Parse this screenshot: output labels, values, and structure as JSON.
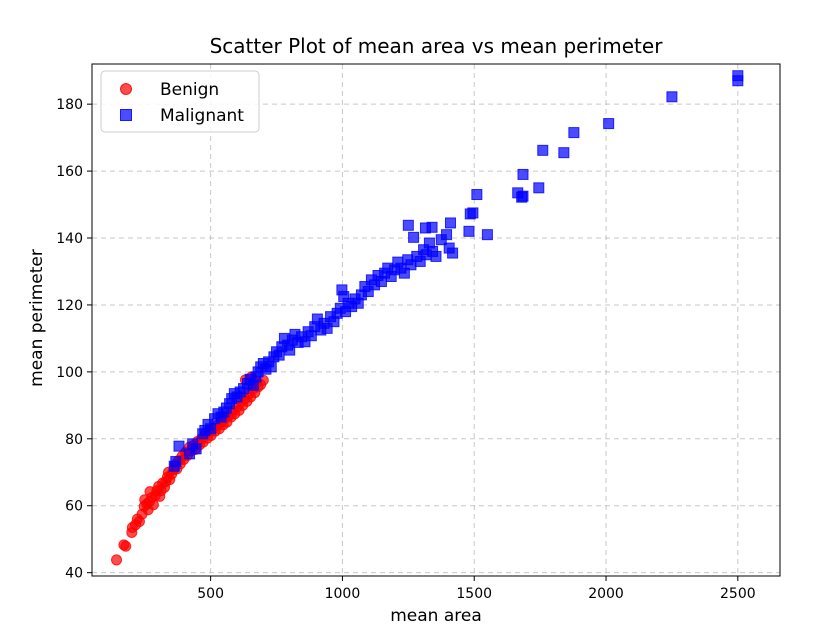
{
  "chart_data": {
    "type": "scatter",
    "title": "Scatter Plot of mean area vs mean perimeter",
    "xlabel": "mean area",
    "ylabel": "mean perimeter",
    "xlim": [
      50,
      2660
    ],
    "ylim": [
      39,
      192
    ],
    "xticks": [
      500,
      1000,
      1500,
      2000,
      2500
    ],
    "yticks": [
      40,
      60,
      80,
      100,
      120,
      140,
      160,
      180
    ],
    "grid": true,
    "legend_position": "top-left",
    "series": [
      {
        "name": "Benign",
        "color": "#ff0000",
        "marker": "circle",
        "points": [
          [
            143,
            43.8
          ],
          [
            171,
            48.3
          ],
          [
            178,
            47.9
          ],
          [
            201,
            52.0
          ],
          [
            203,
            53.5
          ],
          [
            215,
            54.3
          ],
          [
            222,
            56.0
          ],
          [
            230,
            55.3
          ],
          [
            240,
            57.5
          ],
          [
            248,
            59.8
          ],
          [
            250,
            61.8
          ],
          [
            258,
            60.5
          ],
          [
            263,
            58.8
          ],
          [
            268,
            61.2
          ],
          [
            270,
            64.2
          ],
          [
            276,
            62.4
          ],
          [
            283,
            60.3
          ],
          [
            290,
            63.0
          ],
          [
            296,
            64.5
          ],
          [
            303,
            65.8
          ],
          [
            307,
            62.8
          ],
          [
            312,
            64.5
          ],
          [
            318,
            66.8
          ],
          [
            325,
            65.5
          ],
          [
            330,
            67.2
          ],
          [
            336,
            68.5
          ],
          [
            340,
            70.0
          ],
          [
            345,
            67.8
          ],
          [
            352,
            69.4
          ],
          [
            360,
            70.8
          ],
          [
            365,
            72.2
          ],
          [
            372,
            71.0
          ],
          [
            378,
            73.5
          ],
          [
            385,
            72.5
          ],
          [
            392,
            74.8
          ],
          [
            398,
            73.8
          ],
          [
            405,
            76.0
          ],
          [
            412,
            75.0
          ],
          [
            420,
            77.5
          ],
          [
            428,
            76.5
          ],
          [
            435,
            78.0
          ],
          [
            442,
            76.8
          ],
          [
            450,
            79.2
          ],
          [
            458,
            78.2
          ],
          [
            465,
            80.0
          ],
          [
            472,
            79.0
          ],
          [
            480,
            81.5
          ],
          [
            488,
            80.2
          ],
          [
            495,
            82.0
          ],
          [
            502,
            81.0
          ],
          [
            510,
            83.2
          ],
          [
            518,
            82.3
          ],
          [
            525,
            84.0
          ],
          [
            533,
            83.0
          ],
          [
            540,
            85.0
          ],
          [
            548,
            84.2
          ],
          [
            555,
            86.2
          ],
          [
            562,
            85.0
          ],
          [
            570,
            87.0
          ],
          [
            578,
            86.5
          ],
          [
            585,
            88.5
          ],
          [
            592,
            87.5
          ],
          [
            600,
            89.5
          ],
          [
            608,
            88.5
          ],
          [
            615,
            91.0
          ],
          [
            622,
            90.0
          ],
          [
            630,
            92.0
          ],
          [
            638,
            91.2
          ],
          [
            645,
            93.5
          ],
          [
            652,
            92.5
          ],
          [
            660,
            94.8
          ],
          [
            668,
            93.8
          ],
          [
            680,
            95.5
          ],
          [
            690,
            96.2
          ],
          [
            632,
            97.6
          ],
          [
            655,
            98.5
          ],
          [
            675,
            96.8
          ],
          [
            700,
            97.5
          ]
        ]
      },
      {
        "name": "Malignant",
        "color": "#0000ff",
        "marker": "square",
        "points": [
          [
            362,
            71.8
          ],
          [
            368,
            73.2
          ],
          [
            380,
            77.8
          ],
          [
            420,
            75.5
          ],
          [
            432,
            78.5
          ],
          [
            445,
            77.0
          ],
          [
            470,
            81.5
          ],
          [
            478,
            82.5
          ],
          [
            490,
            84.3
          ],
          [
            500,
            83.0
          ],
          [
            515,
            86.0
          ],
          [
            528,
            87.5
          ],
          [
            540,
            86.5
          ],
          [
            550,
            88.0
          ],
          [
            560,
            89.2
          ],
          [
            572,
            90.5
          ],
          [
            580,
            92.0
          ],
          [
            590,
            93.5
          ],
          [
            600,
            92.5
          ],
          [
            612,
            94.0
          ],
          [
            625,
            95.0
          ],
          [
            640,
            96.5
          ],
          [
            650,
            97.8
          ],
          [
            662,
            96.0
          ],
          [
            672,
            98.5
          ],
          [
            680,
            100.0
          ],
          [
            690,
            101.5
          ],
          [
            700,
            102.5
          ],
          [
            710,
            100.8
          ],
          [
            720,
            103.0
          ],
          [
            730,
            101.5
          ],
          [
            740,
            104.5
          ],
          [
            750,
            106.0
          ],
          [
            760,
            105.0
          ],
          [
            770,
            107.5
          ],
          [
            780,
            110.0
          ],
          [
            792,
            108.0
          ],
          [
            800,
            106.5
          ],
          [
            810,
            109.5
          ],
          [
            820,
            111.2
          ],
          [
            832,
            108.8
          ],
          [
            845,
            110.5
          ],
          [
            858,
            109.0
          ],
          [
            870,
            112.0
          ],
          [
            882,
            110.8
          ],
          [
            895,
            113.5
          ],
          [
            905,
            115.8
          ],
          [
            918,
            112.5
          ],
          [
            930,
            114.5
          ],
          [
            942,
            113.0
          ],
          [
            955,
            116.5
          ],
          [
            968,
            115.0
          ],
          [
            980,
            117.5
          ],
          [
            992,
            119.0
          ],
          [
            998,
            124.5
          ],
          [
            1005,
            122.5
          ],
          [
            1012,
            118.0
          ],
          [
            1022,
            120.5
          ],
          [
            1035,
            119.5
          ],
          [
            1048,
            121.8
          ],
          [
            1060,
            120.5
          ],
          [
            1072,
            123.0
          ],
          [
            1085,
            125.5
          ],
          [
            1098,
            124.0
          ],
          [
            1110,
            127.5
          ],
          [
            1122,
            126.0
          ],
          [
            1135,
            128.8
          ],
          [
            1148,
            127.0
          ],
          [
            1160,
            129.5
          ],
          [
            1172,
            131.0
          ],
          [
            1185,
            128.5
          ],
          [
            1198,
            130.5
          ],
          [
            1210,
            132.8
          ],
          [
            1222,
            131.0
          ],
          [
            1235,
            129.5
          ],
          [
            1248,
            133.5
          ],
          [
            1260,
            132.0
          ],
          [
            1270,
            140.2
          ],
          [
            1282,
            134.5
          ],
          [
            1295,
            133.0
          ],
          [
            1308,
            136.5
          ],
          [
            1318,
            135.0
          ],
          [
            1330,
            138.5
          ],
          [
            1342,
            136.0
          ],
          [
            1355,
            134.5
          ],
          [
            1250,
            143.8
          ],
          [
            1315,
            143.0
          ],
          [
            1340,
            143.2
          ],
          [
            1375,
            139.5
          ],
          [
            1395,
            141.0
          ],
          [
            1405,
            137.0
          ],
          [
            1410,
            144.5
          ],
          [
            1418,
            135.5
          ],
          [
            1480,
            142.0
          ],
          [
            1485,
            147.2
          ],
          [
            1495,
            147.5
          ],
          [
            1510,
            153.0
          ],
          [
            1550,
            141.0
          ],
          [
            1665,
            153.5
          ],
          [
            1680,
            152.2
          ],
          [
            1685,
            152.5
          ],
          [
            1685,
            159.0
          ],
          [
            1745,
            155.0
          ],
          [
            1760,
            166.2
          ],
          [
            1840,
            165.5
          ],
          [
            1878,
            171.5
          ],
          [
            2010,
            174.2
          ],
          [
            2250,
            182.2
          ],
          [
            2500,
            188.5
          ],
          [
            2500,
            187.0
          ]
        ]
      }
    ]
  }
}
